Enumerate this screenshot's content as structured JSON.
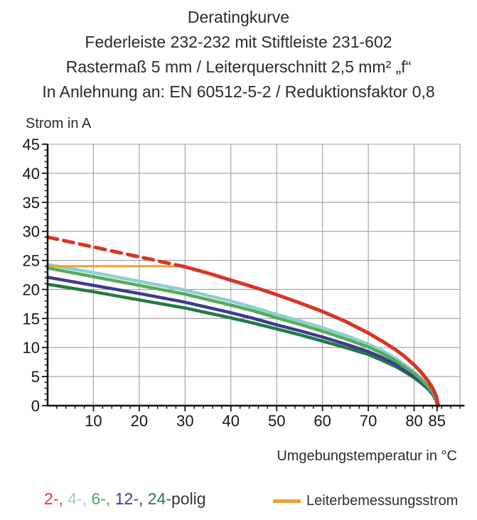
{
  "title": {
    "line1": "Deratingkurve",
    "line2": "Federleiste 232-232 mit Stiftleiste 231-602",
    "line3": "Rastermaß 5 mm / Leiterquerschnitt 2,5 mm² „f“",
    "line4": "In Anlehnung an: EN 60512-5-2 / Reduktionsfaktor 0,8"
  },
  "legend": {
    "poles": [
      {
        "label": "2-,",
        "color": "#d53a2f"
      },
      {
        "label": "4-,",
        "color": "#9fccd3"
      },
      {
        "label": "6-,",
        "color": "#4fa95a"
      },
      {
        "label": "12-,",
        "color": "#3d3b8e"
      },
      {
        "label": "24-",
        "color": "#2a7a4b"
      }
    ],
    "poles_suffix": "polig",
    "poles_suffix_color": "#36363c",
    "line_label": "Leiterbemessungsstrom",
    "line_color": "#f0a02f"
  },
  "chart_data": {
    "type": "line",
    "title": "Deratingkurve Federleiste 232-232 mit Stiftleiste 231-602",
    "xlabel": "Umgebungstemperatur in °C",
    "ylabel": "Strom in A",
    "xlim": [
      0,
      90
    ],
    "ylim": [
      0,
      45
    ],
    "grid": true,
    "grid_color": "#9e9e9e",
    "axis_color": "#111111",
    "x_axis": {
      "major_ticks": [
        10,
        20,
        30,
        40,
        50,
        60,
        70,
        80,
        85
      ],
      "minor_step": 2,
      "grid_step": 10,
      "axis_end": 91
    },
    "y_axis": {
      "major_ticks": [
        0,
        5,
        10,
        15,
        20,
        25,
        30,
        35,
        40,
        45
      ],
      "minor_step": 1,
      "grid_step": 5
    },
    "series": [
      {
        "name": "24-polig",
        "color": "#217a44",
        "width": 4.5,
        "dash": null,
        "points": [
          [
            0,
            20.9
          ],
          [
            10,
            19.6
          ],
          [
            20,
            18.2
          ],
          [
            30,
            16.8
          ],
          [
            40,
            15.1
          ],
          [
            45,
            14.2
          ],
          [
            50,
            13.2
          ],
          [
            55,
            12.2
          ],
          [
            60,
            11.1
          ],
          [
            65,
            10.0
          ],
          [
            70,
            8.8
          ],
          [
            73,
            7.8
          ],
          [
            76,
            6.7
          ],
          [
            78,
            5.8
          ],
          [
            80,
            4.8
          ],
          [
            81.5,
            3.9
          ],
          [
            83,
            2.9
          ],
          [
            84,
            2.0
          ],
          [
            84.8,
            0.9
          ],
          [
            85,
            0
          ]
        ]
      },
      {
        "name": "12-polig",
        "color": "#3d3b8e",
        "width": 4.5,
        "dash": null,
        "points": [
          [
            0,
            22.1
          ],
          [
            10,
            20.7
          ],
          [
            20,
            19.3
          ],
          [
            30,
            17.8
          ],
          [
            40,
            16.0
          ],
          [
            45,
            15.0
          ],
          [
            50,
            13.9
          ],
          [
            55,
            12.9
          ],
          [
            60,
            11.8
          ],
          [
            65,
            10.6
          ],
          [
            70,
            9.3
          ],
          [
            73,
            8.3
          ],
          [
            76,
            7.1
          ],
          [
            78,
            6.1
          ],
          [
            80,
            5.1
          ],
          [
            81.5,
            4.2
          ],
          [
            83,
            3.1
          ],
          [
            84,
            2.1
          ],
          [
            84.8,
            1.0
          ],
          [
            85,
            0
          ]
        ]
      },
      {
        "name": "4-polig",
        "color": "#8fccd2",
        "width": 4.5,
        "dash": null,
        "points": [
          [
            0,
            24.3
          ],
          [
            10,
            22.9
          ],
          [
            20,
            21.4
          ],
          [
            30,
            19.9
          ],
          [
            40,
            18.0
          ],
          [
            45,
            16.9
          ],
          [
            50,
            15.7
          ],
          [
            55,
            14.6
          ],
          [
            60,
            13.4
          ],
          [
            65,
            12.1
          ],
          [
            70,
            10.6
          ],
          [
            73,
            9.5
          ],
          [
            76,
            8.1
          ],
          [
            78,
            7.0
          ],
          [
            80,
            5.8
          ],
          [
            81.5,
            4.8
          ],
          [
            83,
            3.5
          ],
          [
            84,
            2.4
          ],
          [
            84.8,
            1.2
          ],
          [
            85,
            0
          ]
        ]
      },
      {
        "name": "6-polig",
        "color": "#52ae57",
        "width": 4.5,
        "dash": null,
        "points": [
          [
            0,
            23.7
          ],
          [
            10,
            22.2
          ],
          [
            20,
            20.7
          ],
          [
            30,
            19.2
          ],
          [
            40,
            17.3
          ],
          [
            45,
            16.3
          ],
          [
            50,
            15.1
          ],
          [
            55,
            14.0
          ],
          [
            60,
            12.8
          ],
          [
            65,
            11.5
          ],
          [
            70,
            10.1
          ],
          [
            73,
            9.0
          ],
          [
            76,
            7.7
          ],
          [
            78,
            6.6
          ],
          [
            80,
            5.5
          ],
          [
            81.5,
            4.5
          ],
          [
            83,
            3.3
          ],
          [
            84,
            2.3
          ],
          [
            84.8,
            1.1
          ],
          [
            85,
            0
          ]
        ]
      },
      {
        "name": "Leiterbemessungsstrom",
        "color": "#f0a02f",
        "width": 3,
        "dash": null,
        "points": [
          [
            0,
            24
          ],
          [
            30,
            24
          ]
        ]
      },
      {
        "name": "2-polig-gestrichelt",
        "color": "#d93425",
        "width": 5,
        "dash": "14 9",
        "points": [
          [
            0,
            29.0
          ],
          [
            10,
            27.3
          ],
          [
            20,
            25.6
          ],
          [
            30,
            23.9
          ]
        ]
      },
      {
        "name": "2-polig",
        "color": "#d93425",
        "width": 5,
        "dash": null,
        "points": [
          [
            30,
            23.9
          ],
          [
            35,
            22.8
          ],
          [
            40,
            21.6
          ],
          [
            45,
            20.4
          ],
          [
            50,
            19.1
          ],
          [
            55,
            17.7
          ],
          [
            60,
            16.2
          ],
          [
            65,
            14.5
          ],
          [
            70,
            12.5
          ],
          [
            73,
            11.1
          ],
          [
            76,
            9.6
          ],
          [
            78,
            8.4
          ],
          [
            80,
            7.0
          ],
          [
            81.5,
            5.8
          ],
          [
            83,
            4.3
          ],
          [
            84,
            3.1
          ],
          [
            84.8,
            1.7
          ],
          [
            85.3,
            0
          ]
        ]
      }
    ]
  }
}
